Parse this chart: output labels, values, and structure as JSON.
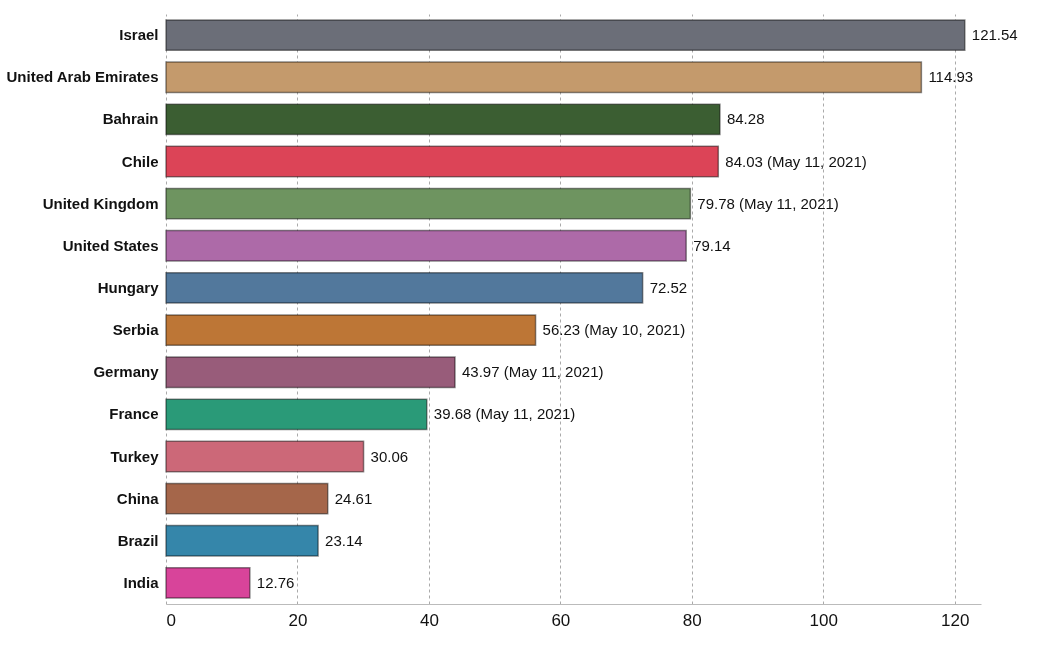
{
  "chart_data": {
    "type": "bar",
    "orientation": "horizontal",
    "categories": [
      "Israel",
      "United Arab Emirates",
      "Bahrain",
      "Chile",
      "United Kingdom",
      "United States",
      "Hungary",
      "Serbia",
      "Germany",
      "France",
      "Turkey",
      "China",
      "Brazil",
      "India"
    ],
    "values": [
      121.54,
      114.93,
      84.28,
      84.03,
      79.78,
      79.14,
      72.52,
      56.23,
      43.97,
      39.68,
      30.06,
      24.61,
      23.14,
      12.76
    ],
    "value_labels": [
      "121.54",
      "114.93",
      "84.28",
      "84.03 (May 11, 2021)",
      "79.78 (May 11, 2021)",
      "79.14",
      "72.52",
      "56.23 (May 10, 2021)",
      "43.97 (May 11, 2021)",
      "39.68 (May 11, 2021)",
      "30.06",
      "24.61",
      "23.14",
      "12.76"
    ],
    "colors": [
      "#6b6e78",
      "#c49a6c",
      "#3b5e32",
      "#dc4457",
      "#6e9460",
      "#ad6aa8",
      "#52789c",
      "#bd7636",
      "#985c7a",
      "#2a9a78",
      "#cc6878",
      "#a5664a",
      "#3586aa",
      "#d8449a"
    ],
    "xlim": [
      0,
      124
    ],
    "xticks": [
      0,
      20,
      40,
      60,
      80,
      100,
      120
    ],
    "grid": "x"
  }
}
